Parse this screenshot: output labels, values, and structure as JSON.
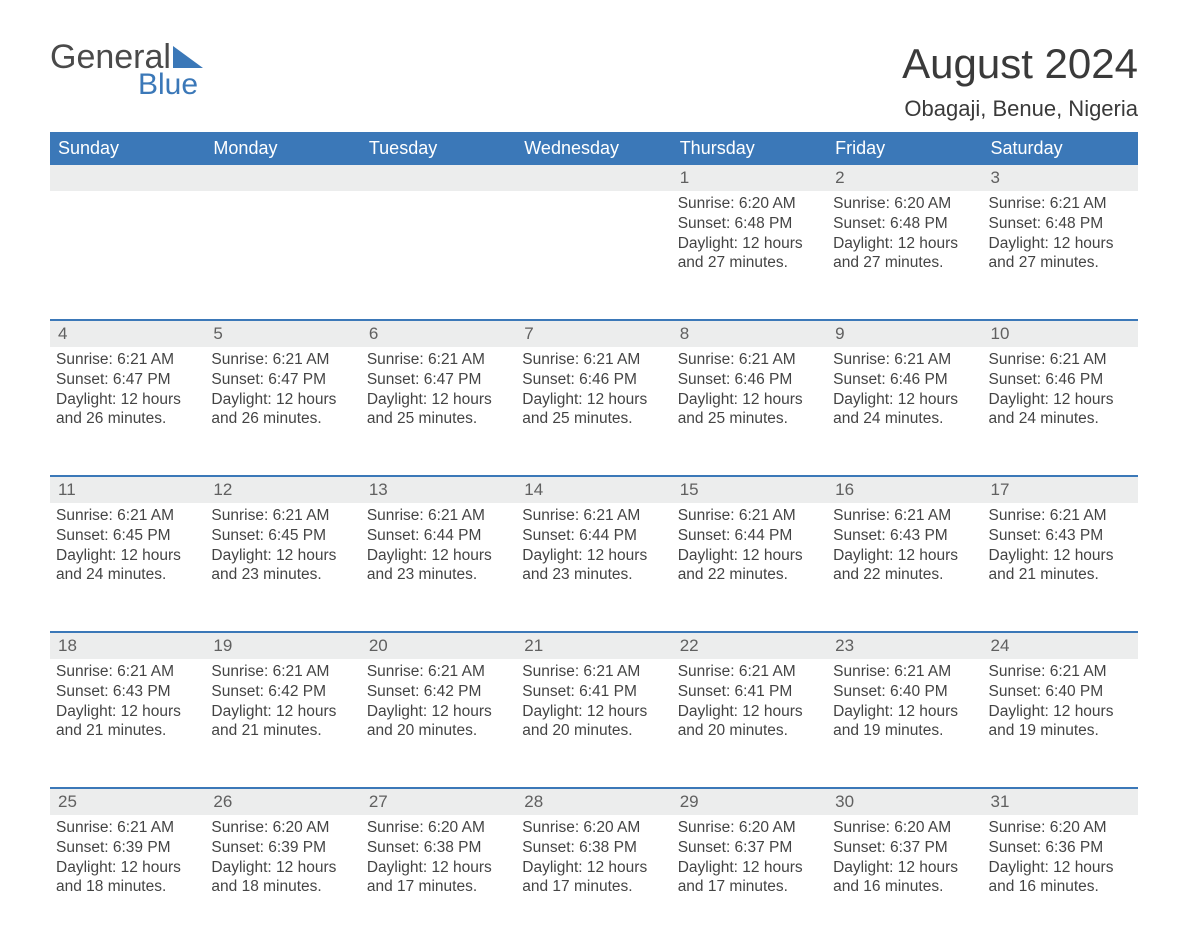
{
  "logo": {
    "word1": "General",
    "word2": "Blue"
  },
  "title": "August 2024",
  "location": "Obagaji, Benue, Nigeria",
  "colors": {
    "brand_blue": "#3b78b8",
    "header_text": "#ffffff",
    "body_text": "#444444",
    "daynum_bg": "#eceded",
    "border": "#3b78b8",
    "background": "#ffffff"
  },
  "fonts": {
    "family": "Arial",
    "title_size": 42,
    "location_size": 22,
    "day_header_size": 18,
    "body_size": 15.5
  },
  "day_headers": [
    "Sunday",
    "Monday",
    "Tuesday",
    "Wednesday",
    "Thursday",
    "Friday",
    "Saturday"
  ],
  "weeks": [
    [
      {
        "day": "",
        "sunrise": "",
        "sunset": "",
        "daylight": ""
      },
      {
        "day": "",
        "sunrise": "",
        "sunset": "",
        "daylight": ""
      },
      {
        "day": "",
        "sunrise": "",
        "sunset": "",
        "daylight": ""
      },
      {
        "day": "",
        "sunrise": "",
        "sunset": "",
        "daylight": ""
      },
      {
        "day": "1",
        "sunrise": "Sunrise: 6:20 AM",
        "sunset": "Sunset: 6:48 PM",
        "daylight": "Daylight: 12 hours and 27 minutes."
      },
      {
        "day": "2",
        "sunrise": "Sunrise: 6:20 AM",
        "sunset": "Sunset: 6:48 PM",
        "daylight": "Daylight: 12 hours and 27 minutes."
      },
      {
        "day": "3",
        "sunrise": "Sunrise: 6:21 AM",
        "sunset": "Sunset: 6:48 PM",
        "daylight": "Daylight: 12 hours and 27 minutes."
      }
    ],
    [
      {
        "day": "4",
        "sunrise": "Sunrise: 6:21 AM",
        "sunset": "Sunset: 6:47 PM",
        "daylight": "Daylight: 12 hours and 26 minutes."
      },
      {
        "day": "5",
        "sunrise": "Sunrise: 6:21 AM",
        "sunset": "Sunset: 6:47 PM",
        "daylight": "Daylight: 12 hours and 26 minutes."
      },
      {
        "day": "6",
        "sunrise": "Sunrise: 6:21 AM",
        "sunset": "Sunset: 6:47 PM",
        "daylight": "Daylight: 12 hours and 25 minutes."
      },
      {
        "day": "7",
        "sunrise": "Sunrise: 6:21 AM",
        "sunset": "Sunset: 6:46 PM",
        "daylight": "Daylight: 12 hours and 25 minutes."
      },
      {
        "day": "8",
        "sunrise": "Sunrise: 6:21 AM",
        "sunset": "Sunset: 6:46 PM",
        "daylight": "Daylight: 12 hours and 25 minutes."
      },
      {
        "day": "9",
        "sunrise": "Sunrise: 6:21 AM",
        "sunset": "Sunset: 6:46 PM",
        "daylight": "Daylight: 12 hours and 24 minutes."
      },
      {
        "day": "10",
        "sunrise": "Sunrise: 6:21 AM",
        "sunset": "Sunset: 6:46 PM",
        "daylight": "Daylight: 12 hours and 24 minutes."
      }
    ],
    [
      {
        "day": "11",
        "sunrise": "Sunrise: 6:21 AM",
        "sunset": "Sunset: 6:45 PM",
        "daylight": "Daylight: 12 hours and 24 minutes."
      },
      {
        "day": "12",
        "sunrise": "Sunrise: 6:21 AM",
        "sunset": "Sunset: 6:45 PM",
        "daylight": "Daylight: 12 hours and 23 minutes."
      },
      {
        "day": "13",
        "sunrise": "Sunrise: 6:21 AM",
        "sunset": "Sunset: 6:44 PM",
        "daylight": "Daylight: 12 hours and 23 minutes."
      },
      {
        "day": "14",
        "sunrise": "Sunrise: 6:21 AM",
        "sunset": "Sunset: 6:44 PM",
        "daylight": "Daylight: 12 hours and 23 minutes."
      },
      {
        "day": "15",
        "sunrise": "Sunrise: 6:21 AM",
        "sunset": "Sunset: 6:44 PM",
        "daylight": "Daylight: 12 hours and 22 minutes."
      },
      {
        "day": "16",
        "sunrise": "Sunrise: 6:21 AM",
        "sunset": "Sunset: 6:43 PM",
        "daylight": "Daylight: 12 hours and 22 minutes."
      },
      {
        "day": "17",
        "sunrise": "Sunrise: 6:21 AM",
        "sunset": "Sunset: 6:43 PM",
        "daylight": "Daylight: 12 hours and 21 minutes."
      }
    ],
    [
      {
        "day": "18",
        "sunrise": "Sunrise: 6:21 AM",
        "sunset": "Sunset: 6:43 PM",
        "daylight": "Daylight: 12 hours and 21 minutes."
      },
      {
        "day": "19",
        "sunrise": "Sunrise: 6:21 AM",
        "sunset": "Sunset: 6:42 PM",
        "daylight": "Daylight: 12 hours and 21 minutes."
      },
      {
        "day": "20",
        "sunrise": "Sunrise: 6:21 AM",
        "sunset": "Sunset: 6:42 PM",
        "daylight": "Daylight: 12 hours and 20 minutes."
      },
      {
        "day": "21",
        "sunrise": "Sunrise: 6:21 AM",
        "sunset": "Sunset: 6:41 PM",
        "daylight": "Daylight: 12 hours and 20 minutes."
      },
      {
        "day": "22",
        "sunrise": "Sunrise: 6:21 AM",
        "sunset": "Sunset: 6:41 PM",
        "daylight": "Daylight: 12 hours and 20 minutes."
      },
      {
        "day": "23",
        "sunrise": "Sunrise: 6:21 AM",
        "sunset": "Sunset: 6:40 PM",
        "daylight": "Daylight: 12 hours and 19 minutes."
      },
      {
        "day": "24",
        "sunrise": "Sunrise: 6:21 AM",
        "sunset": "Sunset: 6:40 PM",
        "daylight": "Daylight: 12 hours and 19 minutes."
      }
    ],
    [
      {
        "day": "25",
        "sunrise": "Sunrise: 6:21 AM",
        "sunset": "Sunset: 6:39 PM",
        "daylight": "Daylight: 12 hours and 18 minutes."
      },
      {
        "day": "26",
        "sunrise": "Sunrise: 6:20 AM",
        "sunset": "Sunset: 6:39 PM",
        "daylight": "Daylight: 12 hours and 18 minutes."
      },
      {
        "day": "27",
        "sunrise": "Sunrise: 6:20 AM",
        "sunset": "Sunset: 6:38 PM",
        "daylight": "Daylight: 12 hours and 17 minutes."
      },
      {
        "day": "28",
        "sunrise": "Sunrise: 6:20 AM",
        "sunset": "Sunset: 6:38 PM",
        "daylight": "Daylight: 12 hours and 17 minutes."
      },
      {
        "day": "29",
        "sunrise": "Sunrise: 6:20 AM",
        "sunset": "Sunset: 6:37 PM",
        "daylight": "Daylight: 12 hours and 17 minutes."
      },
      {
        "day": "30",
        "sunrise": "Sunrise: 6:20 AM",
        "sunset": "Sunset: 6:37 PM",
        "daylight": "Daylight: 12 hours and 16 minutes."
      },
      {
        "day": "31",
        "sunrise": "Sunrise: 6:20 AM",
        "sunset": "Sunset: 6:36 PM",
        "daylight": "Daylight: 12 hours and 16 minutes."
      }
    ]
  ]
}
